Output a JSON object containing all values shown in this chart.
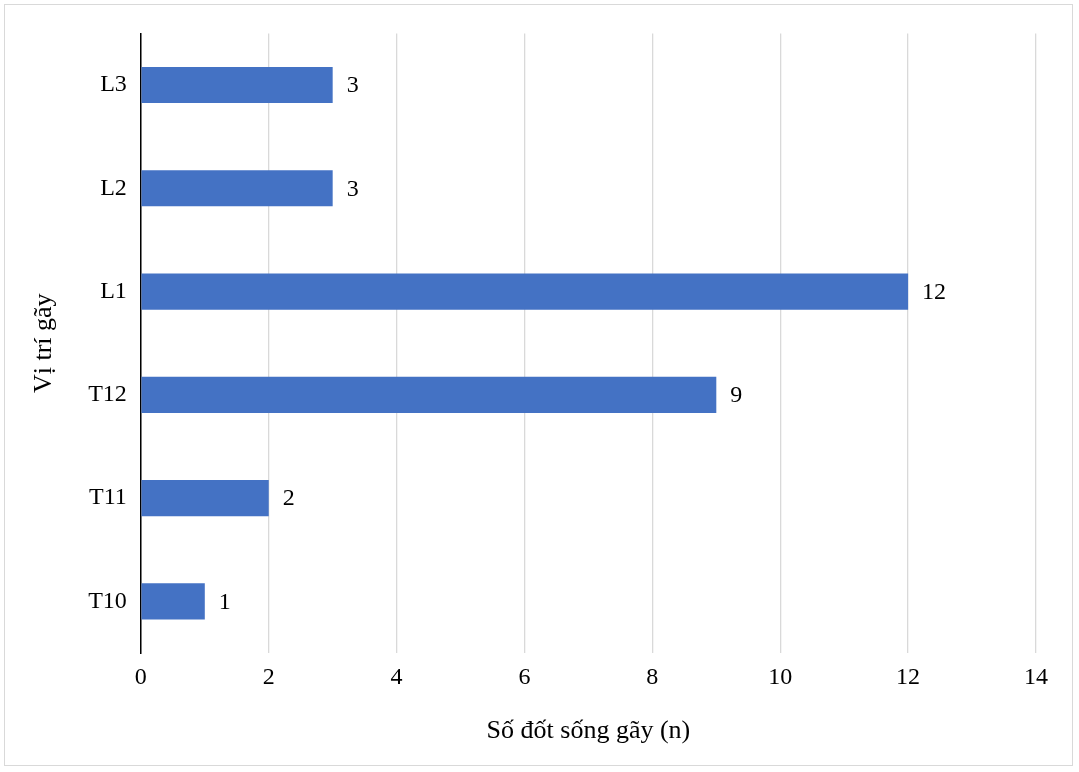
{
  "chart_data": {
    "type": "bar",
    "orientation": "horizontal",
    "categories": [
      "L3",
      "L2",
      "L1",
      "T12",
      "T11",
      "T10"
    ],
    "values": [
      3,
      3,
      12,
      9,
      2,
      1
    ],
    "color": "#4472c4",
    "xlabel": "Số đốt sống gãy (n)",
    "ylabel": "Vị trí gãy",
    "xlim": [
      0,
      14
    ],
    "xticks": [
      0,
      2,
      4,
      6,
      8,
      10,
      12,
      14
    ],
    "grid": "x",
    "data_labels": true,
    "legend": false
  }
}
